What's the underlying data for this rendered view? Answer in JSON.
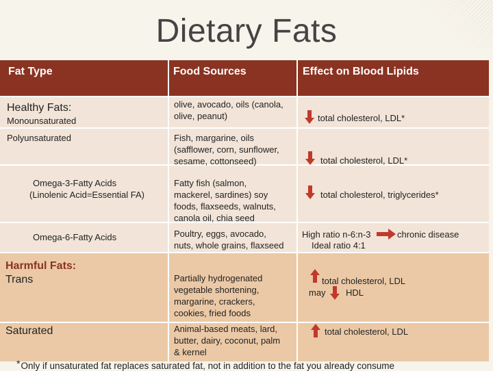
{
  "title": "Dietary Fats",
  "headers": {
    "fat_type": "Fat Type",
    "food_sources": "Food Sources",
    "effect": "Effect on Blood Lipids"
  },
  "rows": {
    "healthy_heading": "Healthy Fats:",
    "mono_type": "Monounsaturated",
    "mono_sources": [
      "olive, avocado, oils (canola,",
      "olive, peanut)"
    ],
    "mono_effect": "total cholesterol, LDL*",
    "poly_type": "Polyunsaturated",
    "poly_sources": [
      "Fish, margarine, oils",
      "(safflower, corn, sunflower,",
      "sesame, cottonseed)"
    ],
    "poly_effect": "total cholesterol, LDL*",
    "omega3_type": [
      "Omega-3-Fatty Acids",
      "(Linolenic Acid=Essential FA)"
    ],
    "omega3_sources": [
      "Fatty fish (salmon,",
      "mackerel, sardines) soy",
      "foods, flaxseeds, walnuts,",
      "canola oil, chia seed"
    ],
    "omega3_effect": "total cholesterol, triglycerides*",
    "omega6_type": "Omega-6-Fatty Acids",
    "omega6_sources": [
      "Poultry, eggs, avocado,",
      "nuts, whole grains, flaxseed"
    ],
    "omega6_effect_1a": "High ratio n-6:n-3",
    "omega6_effect_1b": "chronic disease",
    "omega6_effect_2": "Ideal ratio 4:1",
    "harmful_heading": "Harmful Fats:",
    "trans_type": "Trans",
    "trans_sources": [
      "Partially hydrogenated",
      "vegetable shortening,",
      "margarine, crackers,",
      "cookies, fried foods"
    ],
    "trans_effect_1": "total cholesterol, LDL",
    "trans_effect_may": "may",
    "trans_effect_hdl": "HDL",
    "sat_type": "Saturated",
    "sat_sources": [
      "Animal-based meats, lard,",
      "butter, dairy, coconut, palm",
      "& kernel"
    ],
    "sat_effect": "total cholesterol, LDL"
  },
  "footnote_mark": "*",
  "footnote": "Only if unsaturated fat replaces saturated fat, not in addition to the fat you already consume",
  "colors": {
    "header_bg": "#8a3322",
    "band_light": "#f2e4d8",
    "band_dark": "#ebc9a6",
    "arrow_fill": "#c0392b"
  },
  "icons": {
    "down": "down-arrow-icon",
    "up": "up-arrow-icon",
    "right": "right-arrow-icon"
  }
}
